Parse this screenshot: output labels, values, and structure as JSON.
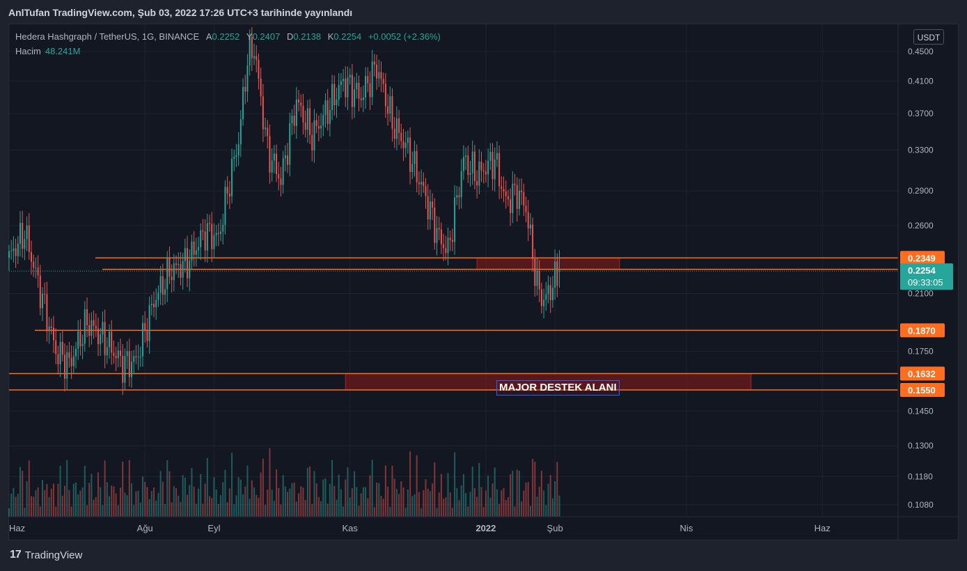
{
  "header": {
    "title": "AnlTufan TradingView.com, Şub 03, 2022 17:26 UTC+3 tarihinde yayınlandı"
  },
  "legend": {
    "symbol": "Hedera Hashgraph / TetherUS, 1G, BINANCE",
    "open_label": "A",
    "open": "0.2252",
    "high_label": "Y",
    "high": "0.2407",
    "low_label": "D",
    "low": "0.2138",
    "close_label": "K",
    "close": "0.2254",
    "change": "+0.0052 (+2.36%)",
    "volume_label": "Hacim",
    "volume": "48.241M"
  },
  "currency": "USDT",
  "annotation": "MAJOR DESTEK ALANI",
  "footer": {
    "brand": "TradingView",
    "logo": "17"
  },
  "colors": {
    "up": "#26a69a",
    "down": "#ef5350",
    "level": "#ff6d1f",
    "zone": "#8b1a1a",
    "background": "#131722"
  },
  "chart_data": {
    "type": "candlestick",
    "ylim": [
      0.104,
      0.49
    ],
    "scale": "log",
    "y_ticks": [
      "0.4500",
      "0.4100",
      "0.3700",
      "0.3300",
      "0.2900",
      "0.2600",
      "0.2100",
      "0.1750",
      "0.1450",
      "0.1300",
      "0.1180",
      "0.1080"
    ],
    "x_ticks": [
      {
        "date": "2021-06-01",
        "label": "Haz"
      },
      {
        "date": "2021-08-01",
        "label": "Ağu"
      },
      {
        "date": "2021-09-01",
        "label": "Eyl"
      },
      {
        "date": "2021-11-01",
        "label": "Kas"
      },
      {
        "date": "2022-01-01",
        "label": "2022"
      },
      {
        "date": "2022-02-01",
        "label": "Şub"
      },
      {
        "date": "2022-04-01",
        "label": "Nis"
      },
      {
        "date": "2022-06-01",
        "label": "Haz"
      }
    ],
    "x_range": [
      "2021-06-01",
      "2022-07-05"
    ],
    "levels": [
      {
        "value": 0.2349,
        "label": "0.2349"
      },
      {
        "value": 0.2266,
        "label": "0.2266"
      },
      {
        "value": 0.187,
        "label": "0.1870"
      },
      {
        "value": 0.1632,
        "label": "0.1632"
      },
      {
        "value": 0.155,
        "label": "0.1550"
      }
    ],
    "current_price": {
      "value": 0.2254,
      "label": "0.2254",
      "countdown": "09:33:05"
    },
    "zones": [
      {
        "from": "2021-12-28",
        "to": "2022-03-02",
        "low": 0.2266,
        "high": 0.2349
      },
      {
        "from": "2021-10-30",
        "to": "2022-04-30",
        "low": 0.155,
        "high": 0.1632
      }
    ],
    "anchors": [
      {
        "date": "2021-06-01",
        "close": 0.235
      },
      {
        "date": "2021-06-08",
        "close": 0.255
      },
      {
        "date": "2021-06-15",
        "close": 0.212
      },
      {
        "date": "2021-06-22",
        "close": 0.175
      },
      {
        "date": "2021-06-28",
        "close": 0.168
      },
      {
        "date": "2021-07-06",
        "close": 0.192
      },
      {
        "date": "2021-07-15",
        "close": 0.18
      },
      {
        "date": "2021-07-22",
        "close": 0.168
      },
      {
        "date": "2021-07-28",
        "close": 0.17
      },
      {
        "date": "2021-08-05",
        "close": 0.205
      },
      {
        "date": "2021-08-12",
        "close": 0.225
      },
      {
        "date": "2021-08-20",
        "close": 0.232
      },
      {
        "date": "2021-08-28",
        "close": 0.255
      },
      {
        "date": "2021-09-03",
        "close": 0.25
      },
      {
        "date": "2021-09-08",
        "close": 0.3
      },
      {
        "date": "2021-09-12",
        "close": 0.34
      },
      {
        "date": "2021-09-16",
        "close": 0.44
      },
      {
        "date": "2021-09-19",
        "close": 0.455
      },
      {
        "date": "2021-09-25",
        "close": 0.33
      },
      {
        "date": "2021-10-01",
        "close": 0.3
      },
      {
        "date": "2021-10-08",
        "close": 0.385
      },
      {
        "date": "2021-10-15",
        "close": 0.345
      },
      {
        "date": "2021-10-22",
        "close": 0.375
      },
      {
        "date": "2021-10-29",
        "close": 0.41
      },
      {
        "date": "2021-11-06",
        "close": 0.39
      },
      {
        "date": "2021-11-13",
        "close": 0.43
      },
      {
        "date": "2021-11-20",
        "close": 0.36
      },
      {
        "date": "2021-11-27",
        "close": 0.33
      },
      {
        "date": "2021-12-04",
        "close": 0.29
      },
      {
        "date": "2021-12-11",
        "close": 0.25
      },
      {
        "date": "2021-12-15",
        "close": 0.24
      },
      {
        "date": "2021-12-22",
        "close": 0.32
      },
      {
        "date": "2021-12-28",
        "close": 0.305
      },
      {
        "date": "2022-01-05",
        "close": 0.32
      },
      {
        "date": "2022-01-10",
        "close": 0.28
      },
      {
        "date": "2022-01-15",
        "close": 0.29
      },
      {
        "date": "2022-01-19",
        "close": 0.275
      },
      {
        "date": "2022-01-24",
        "close": 0.215
      },
      {
        "date": "2022-01-27",
        "close": 0.205
      },
      {
        "date": "2022-02-03",
        "close": 0.2254
      }
    ]
  }
}
